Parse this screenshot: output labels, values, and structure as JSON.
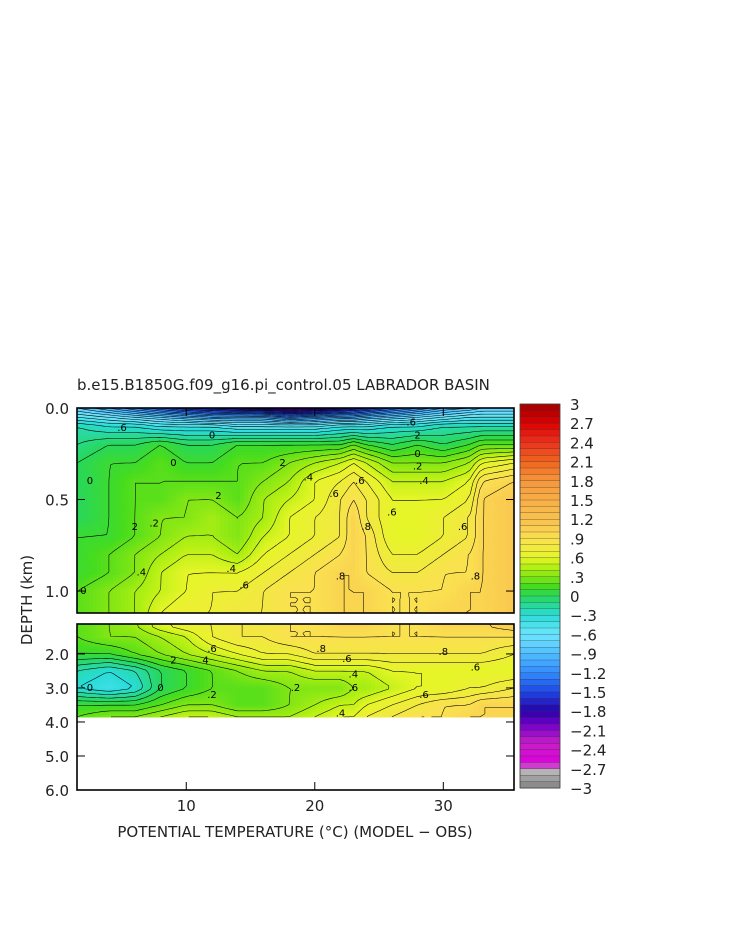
{
  "chart_data": {
    "type": "heatmap",
    "title": "b.e15.B1850G.f09_g16.pi_control.05 LABRADOR BASIN",
    "xlabel": "POTENTIAL TEMPERATURE (°C) (MODEL − OBS)",
    "ylabel": "DEPTH (km)",
    "x_ticks": [
      "10",
      "20",
      "30"
    ],
    "x_tick_values": [
      10,
      20,
      30
    ],
    "xlim": [
      1.5,
      35.5
    ],
    "upper_panel": {
      "ylim": [
        0.0,
        1.12
      ],
      "y_ticks": [
        "0.0",
        "0.5",
        "1.0"
      ],
      "y_tick_values": [
        0.0,
        0.5,
        1.0
      ]
    },
    "lower_panel": {
      "ylim": [
        1.12,
        6.0
      ],
      "y_ticks": [
        "2.0",
        "3.0",
        "4.0",
        "5.0",
        "6.0"
      ],
      "y_tick_values": [
        2.0,
        3.0,
        4.0,
        5.0,
        6.0
      ],
      "data_bottom_depth": 3.85
    },
    "colorbar": {
      "range": [
        -3,
        3
      ],
      "step": 0.1,
      "labels": [
        "3",
        "2.7",
        "2.4",
        "2.1",
        "1.8",
        "1.5",
        "1.2",
        ".9",
        ".6",
        ".3",
        "0",
        "−.3",
        "−.6",
        "−.9",
        "−1.2",
        "−1.5",
        "−1.8",
        "−2.1",
        "−2.4",
        "−2.7",
        "−3"
      ],
      "label_values": [
        3,
        2.7,
        2.4,
        2.1,
        1.8,
        1.5,
        1.2,
        0.9,
        0.6,
        0.3,
        0,
        -0.3,
        -0.6,
        -0.9,
        -1.2,
        -1.5,
        -1.8,
        -2.1,
        -2.4,
        -2.7,
        -3
      ]
    },
    "x_grid": [
      1.5,
      4,
      6,
      8,
      10,
      12,
      14,
      16,
      18,
      20,
      22,
      23,
      24,
      26,
      28,
      30,
      32,
      33,
      35.5
    ],
    "depth_grid": [
      0.0,
      0.05,
      0.1,
      0.2,
      0.3,
      0.4,
      0.5,
      0.6,
      0.7,
      0.8,
      0.9,
      1.0,
      1.12,
      1.5,
      2.0,
      2.5,
      3.0,
      3.5,
      3.85
    ],
    "values": [
      [
        -0.8,
        -1.0,
        -1.2,
        -1.4,
        -1.6,
        -1.7,
        -1.8,
        -1.9,
        -2.1,
        -2.0,
        -1.8,
        -1.7,
        -1.6,
        -1.4,
        -1.2,
        -1.0,
        -0.9,
        -0.8,
        -0.8
      ],
      [
        -0.5,
        -0.6,
        -0.7,
        -0.8,
        -0.9,
        -1.0,
        -1.0,
        -1.0,
        -1.2,
        -1.1,
        -1.0,
        -1.0,
        -0.9,
        -0.8,
        -0.7,
        -0.6,
        -0.5,
        -0.5,
        -0.5
      ],
      [
        -0.2,
        -0.3,
        -0.3,
        -0.4,
        -0.4,
        -0.4,
        -0.5,
        -0.5,
        -0.5,
        -0.5,
        -0.4,
        -0.4,
        -0.4,
        -0.3,
        -0.3,
        -0.2,
        -0.2,
        -0.2,
        -0.2
      ],
      [
        -0.1,
        0.0,
        0.0,
        0.1,
        0.0,
        0.0,
        0.1,
        0.1,
        0.1,
        0.1,
        0.1,
        0.2,
        0.1,
        0.0,
        0.1,
        0.0,
        0.1,
        0.2,
        0.2
      ],
      [
        0.0,
        0.1,
        0.1,
        0.2,
        0.1,
        0.1,
        0.2,
        0.2,
        0.3,
        0.4,
        0.5,
        0.6,
        0.5,
        0.3,
        0.3,
        0.3,
        0.4,
        0.6,
        0.7
      ],
      [
        0.0,
        0.1,
        0.2,
        0.2,
        0.2,
        0.2,
        0.2,
        0.3,
        0.4,
        0.6,
        0.7,
        0.8,
        0.7,
        0.5,
        0.5,
        0.5,
        0.6,
        0.9,
        1.0
      ],
      [
        0.0,
        0.1,
        0.2,
        0.2,
        0.3,
        0.3,
        0.2,
        0.4,
        0.5,
        0.6,
        0.8,
        0.9,
        0.8,
        0.6,
        0.6,
        0.6,
        0.7,
        1.0,
        1.1
      ],
      [
        0.0,
        0.1,
        0.2,
        0.3,
        0.3,
        0.4,
        0.3,
        0.4,
        0.6,
        0.7,
        0.8,
        1.0,
        0.8,
        0.6,
        0.6,
        0.7,
        0.8,
        1.0,
        1.1
      ],
      [
        0.1,
        0.1,
        0.2,
        0.3,
        0.4,
        0.4,
        0.3,
        0.5,
        0.6,
        0.7,
        0.8,
        1.0,
        0.9,
        0.6,
        0.6,
        0.7,
        0.8,
        1.0,
        1.1
      ],
      [
        0.1,
        0.2,
        0.3,
        0.4,
        0.5,
        0.5,
        0.4,
        0.6,
        0.7,
        0.8,
        0.9,
        1.0,
        0.9,
        0.7,
        0.7,
        0.8,
        0.9,
        1.0,
        1.1
      ],
      [
        0.1,
        0.2,
        0.3,
        0.5,
        0.6,
        0.6,
        0.6,
        0.7,
        0.8,
        0.9,
        1.0,
        1.0,
        0.9,
        0.8,
        0.8,
        0.9,
        0.9,
        1.0,
        1.1
      ],
      [
        0.2,
        0.3,
        0.4,
        0.5,
        0.6,
        0.7,
        0.7,
        0.8,
        0.9,
        0.9,
        1.0,
        1.0,
        1.0,
        0.9,
        0.9,
        0.9,
        1.0,
        1.0,
        1.1
      ],
      [
        0.2,
        0.3,
        0.4,
        0.6,
        0.7,
        0.7,
        0.8,
        0.8,
        0.9,
        0.9,
        1.0,
        1.0,
        1.0,
        0.9,
        0.9,
        1.0,
        1.0,
        1.0,
        1.1
      ],
      [
        0.2,
        0.3,
        0.3,
        0.4,
        0.5,
        0.7,
        0.8,
        0.8,
        0.9,
        0.9,
        0.9,
        0.9,
        0.9,
        0.9,
        0.9,
        0.9,
        0.9,
        0.9,
        0.9
      ],
      [
        0.1,
        0.1,
        0.2,
        0.3,
        0.4,
        0.5,
        0.6,
        0.7,
        0.7,
        0.8,
        0.8,
        0.8,
        0.8,
        0.8,
        0.8,
        0.8,
        0.8,
        0.8,
        0.7
      ],
      [
        -0.2,
        -0.3,
        -0.2,
        0.0,
        0.1,
        0.2,
        0.3,
        0.4,
        0.4,
        0.5,
        0.5,
        0.5,
        0.5,
        0.6,
        0.6,
        0.6,
        0.6,
        0.6,
        0.6
      ],
      [
        -0.3,
        -0.4,
        -0.3,
        0.0,
        0.1,
        0.2,
        0.2,
        0.2,
        0.3,
        0.3,
        0.3,
        0.4,
        0.4,
        0.5,
        0.6,
        0.6,
        0.7,
        0.7,
        0.8
      ],
      [
        0.1,
        0.1,
        0.1,
        0.2,
        0.3,
        0.3,
        0.2,
        0.2,
        0.3,
        0.4,
        0.5,
        0.5,
        0.6,
        0.7,
        0.8,
        0.9,
        0.9,
        1.0,
        1.0
      ],
      [
        0.2,
        0.3,
        0.3,
        0.4,
        0.5,
        0.5,
        0.4,
        0.4,
        0.4,
        0.5,
        0.6,
        0.6,
        0.7,
        0.8,
        0.9,
        0.9,
        1.0,
        1.0,
        1.0
      ]
    ],
    "contour_labels": [
      {
        "text": "0",
        "x": 2.0,
        "y": 1.0
      },
      {
        "text": "0",
        "x": 2.5,
        "y": 0.4
      },
      {
        "text": "0",
        "x": 9.0,
        "y": 0.3
      },
      {
        "text": "2",
        "x": 6.0,
        "y": 0.65
      },
      {
        "text": ".2",
        "x": 7.5,
        "y": 0.63
      },
      {
        "text": ".4",
        "x": 6.5,
        "y": 0.9
      },
      {
        "text": ".4",
        "x": 13.5,
        "y": 0.88
      },
      {
        "text": ".6",
        "x": 14.5,
        "y": 0.97
      },
      {
        "text": "2",
        "x": 12.5,
        "y": 0.48
      },
      {
        "text": "2",
        "x": 17.5,
        "y": 0.3
      },
      {
        "text": ".4",
        "x": 19.5,
        "y": 0.38
      },
      {
        "text": ".6",
        "x": 21.5,
        "y": 0.47
      },
      {
        "text": ".6",
        "x": 23.5,
        "y": 0.4
      },
      {
        "text": ".8",
        "x": 24.0,
        "y": 0.65
      },
      {
        "text": ".8",
        "x": 22.0,
        "y": 0.92
      },
      {
        "text": ".6",
        "x": 26.0,
        "y": 0.57
      },
      {
        "text": ".4",
        "x": 28.5,
        "y": 0.4
      },
      {
        "text": "0",
        "x": 28.0,
        "y": 0.25
      },
      {
        "text": ".2",
        "x": 28.0,
        "y": 0.32
      },
      {
        "text": ".6",
        "x": 31.5,
        "y": 0.65
      },
      {
        "text": ".8",
        "x": 32.5,
        "y": 0.92
      },
      {
        "text": ".6",
        "x": 5.0,
        "y": 0.11
      },
      {
        "text": ".6",
        "x": 27.5,
        "y": 0.08
      },
      {
        "text": "0",
        "x": 12.0,
        "y": 0.15
      },
      {
        "text": "2",
        "x": 28.0,
        "y": 0.15
      },
      {
        "text": ".6",
        "x": 12.0,
        "y": 1.85
      },
      {
        "text": ".8",
        "x": 20.5,
        "y": 1.85
      },
      {
        "text": ".6",
        "x": 22.5,
        "y": 2.15
      },
      {
        "text": ".8",
        "x": 30.0,
        "y": 1.95
      },
      {
        "text": ".6",
        "x": 32.5,
        "y": 2.4
      },
      {
        "text": "2",
        "x": 9.0,
        "y": 2.2
      },
      {
        "text": "4",
        "x": 11.5,
        "y": 2.2
      },
      {
        "text": "0",
        "x": 2.5,
        "y": 3.0
      },
      {
        "text": "0",
        "x": 8.0,
        "y": 3.0
      },
      {
        "text": ".2",
        "x": 12.0,
        "y": 3.2
      },
      {
        "text": ".2",
        "x": 18.5,
        "y": 3.0
      },
      {
        "text": ".4",
        "x": 23.0,
        "y": 2.6
      },
      {
        "text": ".6",
        "x": 23.0,
        "y": 3.0
      },
      {
        "text": ".6",
        "x": 28.5,
        "y": 3.2
      },
      {
        "text": ".4",
        "x": 22.0,
        "y": 3.75
      }
    ]
  }
}
